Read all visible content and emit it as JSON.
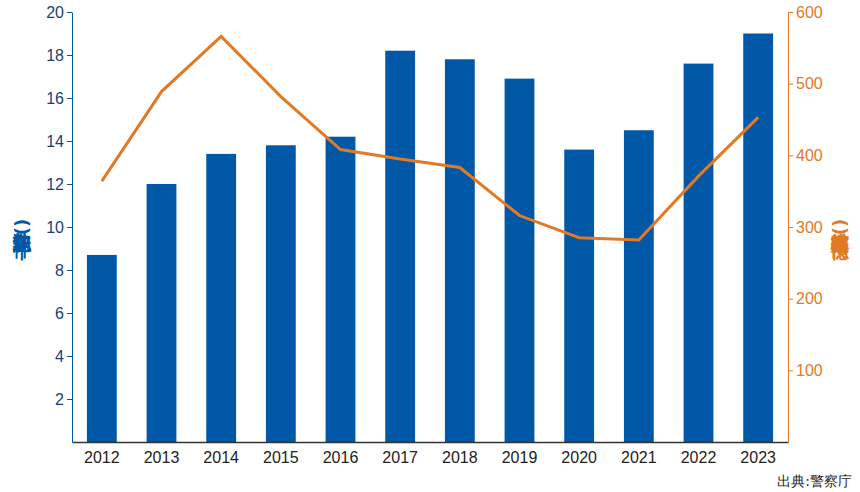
{
  "chart_data": {
    "type": "bar",
    "y_label": "認知件数(千件)",
    "y2_label": "被害総額(億円)",
    "annotations": [
      "出典:警察庁"
    ],
    "categories": [
      "2012",
      "2013",
      "2014",
      "2015",
      "2016",
      "2017",
      "2018",
      "2019",
      "2020",
      "2021",
      "2022",
      "2023"
    ],
    "series": [
      {
        "type": "bar",
        "color": "#0058a6",
        "values": [
          8.7,
          12.0,
          13.4,
          13.8,
          14.2,
          18.2,
          17.8,
          16.9,
          13.6,
          14.5,
          17.6,
          19.0
        ]
      },
      {
        "type": "line",
        "axis": "y2",
        "color": "#e07a25",
        "values": [
          364,
          489,
          566,
          482,
          408,
          395,
          383,
          316,
          285,
          282,
          371,
          453
        ]
      }
    ],
    "ylim": [
      0,
      20
    ],
    "yticks": [
      2,
      4,
      6,
      8,
      10,
      12,
      14,
      16,
      18,
      20
    ],
    "y2lim": [
      0,
      600
    ],
    "y2ticks": [
      100,
      200,
      300,
      400,
      500,
      600
    ],
    "grid": false
  }
}
